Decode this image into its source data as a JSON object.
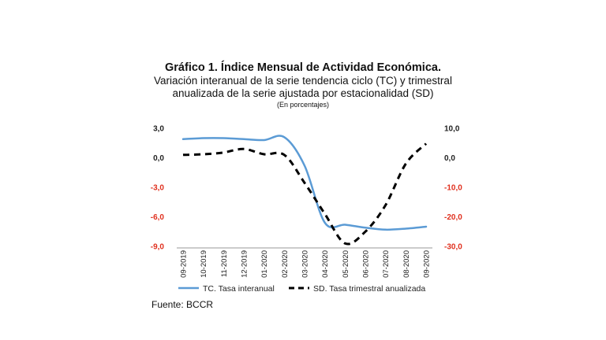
{
  "chart_data": {
    "type": "line",
    "title": "Gráfico 1. Índice Mensual de Actividad Económica.",
    "subtitle": "Variación interanual de la serie tendencia ciclo (TC) y trimestral anualizada de la serie ajustada por estacionalidad (SD)",
    "unit_note": "(En porcentajes)",
    "categories": [
      "09-2019",
      "10-2019",
      "11-2019",
      "12-2019",
      "01-2020",
      "02-2020",
      "03-2020",
      "04-2020",
      "05-2020",
      "06-2020",
      "07-2020",
      "08-2020",
      "09-2020"
    ],
    "y_left": {
      "ylim": [
        -9,
        3
      ],
      "ticks": [
        3,
        0,
        -3,
        -6,
        -9
      ],
      "tick_labels": [
        "3,0",
        "0,0",
        "-3,0",
        "-6,0",
        "-9,0"
      ]
    },
    "y_right": {
      "ylim": [
        -30,
        10
      ],
      "ticks": [
        10,
        0,
        -10,
        -20,
        -30
      ],
      "tick_labels": [
        "10,0",
        "0,0",
        "-10,0",
        "-20,0",
        "-30,0"
      ]
    },
    "series": [
      {
        "name": "TC. Tasa interanual",
        "axis": "left",
        "color": "#5b9bd5",
        "style": "solid",
        "values": [
          1.9,
          2.0,
          2.0,
          1.9,
          1.8,
          2.1,
          -0.8,
          -6.6,
          -6.8,
          -7.1,
          -7.3,
          -7.2,
          -7.0
        ]
      },
      {
        "name": "SD. Tasa trimestral anualizada",
        "axis": "right",
        "color": "#000000",
        "style": "dashed",
        "values": [
          1.0,
          1.2,
          1.8,
          3.0,
          1.2,
          1.0,
          -8.5,
          -19.0,
          -29.0,
          -25.0,
          -16.0,
          -2.0,
          4.8
        ]
      }
    ],
    "legend_position": "bottom",
    "grid": false
  },
  "source_note": "Fuente: BCCR",
  "colors": {
    "negative_tick": "#e0301e",
    "positive_tick": "#222222"
  }
}
